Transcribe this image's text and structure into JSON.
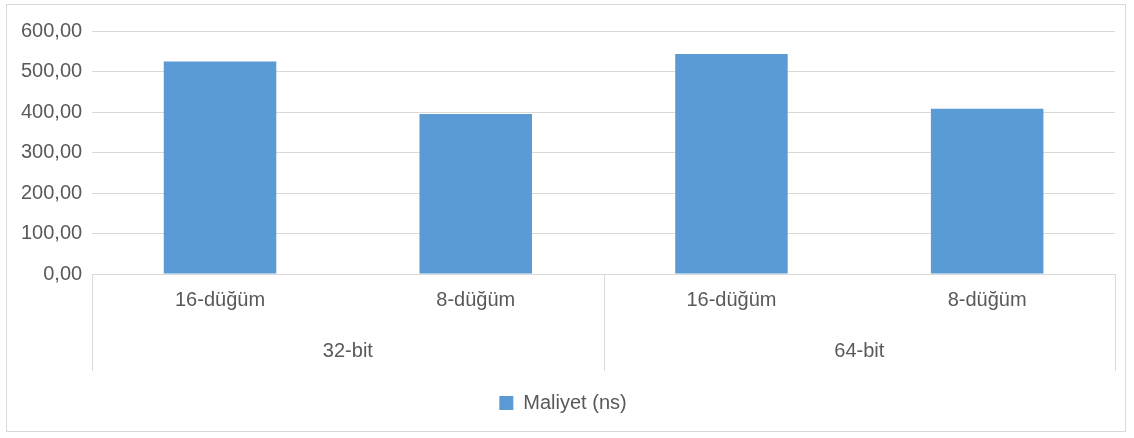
{
  "chart_data": {
    "type": "bar",
    "categories": [
      "16-düğüm",
      "8-düğüm",
      "16-düğüm",
      "8-düğüm"
    ],
    "series": [
      {
        "name": "Maliyet (ns)",
        "color": "#5b9bd5",
        "values": [
          525,
          395,
          543,
          408
        ]
      }
    ],
    "annotations": [
      "32-bit",
      "64-bit"
    ],
    "ylim": [
      0,
      600
    ],
    "yticks": [
      {
        "value": 0,
        "label": "0,00"
      },
      {
        "value": 100,
        "label": "100,00"
      },
      {
        "value": 200,
        "label": "200,00"
      },
      {
        "value": 300,
        "label": "300,00"
      },
      {
        "value": 400,
        "label": "400,00"
      },
      {
        "value": 500,
        "label": "500,00"
      },
      {
        "value": 600,
        "label": "600,00"
      }
    ],
    "grid": "y",
    "legend": "bottom"
  }
}
